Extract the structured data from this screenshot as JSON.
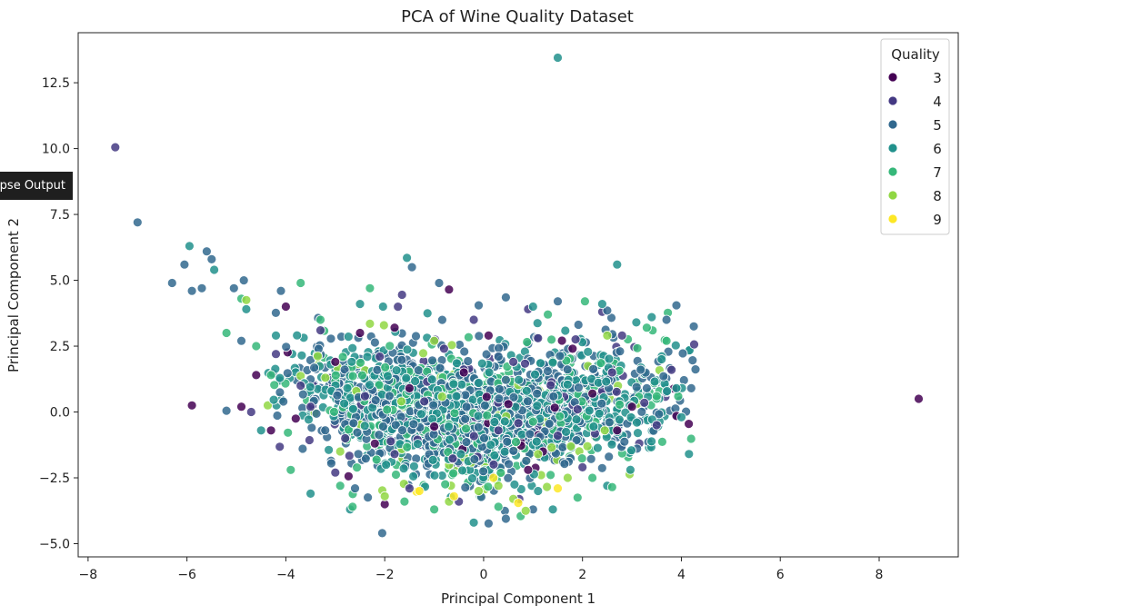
{
  "tooltip": {
    "label": "Collapse Output"
  },
  "chart_data": {
    "type": "scatter",
    "title": "PCA of Wine Quality Dataset",
    "xlabel": "Principal Component 1",
    "ylabel": "Principal Component 2",
    "xlim": [
      -8.2,
      9.6
    ],
    "ylim": [
      -5.5,
      14.4
    ],
    "xticks": [
      -8,
      -6,
      -4,
      -2,
      0,
      2,
      4,
      6,
      8
    ],
    "xtick_labels": [
      "−8",
      "−6",
      "−4",
      "−2",
      "0",
      "2",
      "4",
      "6",
      "8"
    ],
    "yticks": [
      -5.0,
      -2.5,
      0.0,
      2.5,
      5.0,
      7.5,
      10.0,
      12.5
    ],
    "ytick_labels": [
      "−5.0",
      "−2.5",
      "0.0",
      "2.5",
      "5.0",
      "7.5",
      "10.0",
      "12.5"
    ],
    "grid": false,
    "legend": {
      "title": "Quality",
      "placement": "top-right",
      "entries": [
        {
          "name": "3",
          "color": "#440154"
        },
        {
          "name": "4",
          "color": "#443983"
        },
        {
          "name": "5",
          "color": "#31688e"
        },
        {
          "name": "6",
          "color": "#21918c"
        },
        {
          "name": "7",
          "color": "#35b779"
        },
        {
          "name": "8",
          "color": "#90d743"
        },
        {
          "name": "9",
          "color": "#fde725"
        }
      ]
    },
    "series": [
      {
        "name": "3",
        "color": "#440154",
        "points": [
          [
            8.8,
            0.5
          ],
          [
            -5.9,
            0.25
          ],
          [
            -4.9,
            0.2
          ],
          [
            -4.6,
            1.4
          ],
          [
            -4.0,
            4.0
          ],
          [
            -0.7,
            4.65
          ],
          [
            0.1,
            2.9
          ],
          [
            4.15,
            -0.45
          ],
          [
            3.9,
            -0.15
          ],
          [
            -3.8,
            -0.25
          ],
          [
            -2.5,
            3.0
          ],
          [
            -2.0,
            -3.5
          ],
          [
            -1.5,
            0.9
          ],
          [
            -1.0,
            -0.55
          ],
          [
            0.5,
            0.3
          ],
          [
            1.2,
            -1.5
          ],
          [
            2.2,
            0.7
          ],
          [
            -3.0,
            1.9
          ],
          [
            -2.2,
            -1.2
          ],
          [
            -0.4,
            1.5
          ],
          [
            1.8,
            2.4
          ],
          [
            0.9,
            -2.2
          ],
          [
            2.7,
            -0.7
          ],
          [
            -4.3,
            -0.7
          ],
          [
            -1.8,
            3.2
          ],
          [
            3.0,
            0.2
          ]
        ]
      },
      {
        "name": "4",
        "color": "#443983",
        "points": [
          [
            -7.45,
            10.05
          ],
          [
            -1.65,
            4.45
          ],
          [
            3.25,
            0.35
          ],
          [
            2.4,
            3.8
          ],
          [
            -4.7,
            0.0
          ],
          [
            -3.7,
            1.0
          ],
          [
            -3.3,
            3.1
          ],
          [
            -2.8,
            -1.0
          ],
          [
            -2.1,
            2.1
          ],
          [
            -1.2,
            0.4
          ],
          [
            -0.2,
            3.5
          ],
          [
            0.6,
            1.9
          ],
          [
            1.5,
            -0.9
          ],
          [
            2.6,
            1.5
          ],
          [
            3.5,
            -0.5
          ],
          [
            -3.0,
            -2.3
          ],
          [
            -1.5,
            -2.9
          ],
          [
            0.3,
            -0.7
          ],
          [
            1.1,
            2.8
          ],
          [
            2.0,
            -2.1
          ],
          [
            -2.4,
            0.6
          ],
          [
            -0.8,
            2.4
          ],
          [
            3.8,
            1.6
          ],
          [
            -4.2,
            2.2
          ],
          [
            0.9,
            3.9
          ],
          [
            -0.5,
            -3.4
          ],
          [
            1.9,
            0.1
          ],
          [
            -3.5,
            0.2
          ],
          [
            2.8,
            2.9
          ],
          [
            -1.8,
            -1.6
          ]
        ]
      },
      {
        "name": "5",
        "color": "#31688e",
        "points": [
          [
            -7.0,
            7.2
          ],
          [
            -6.3,
            4.9
          ],
          [
            -6.05,
            5.6
          ],
          [
            -5.6,
            6.1
          ],
          [
            -5.5,
            5.8
          ],
          [
            -4.85,
            5.0
          ],
          [
            -4.1,
            4.6
          ],
          [
            -2.05,
            -4.6
          ],
          [
            -1.45,
            5.5
          ],
          [
            -0.9,
            4.9
          ],
          [
            -0.1,
            4.05
          ],
          [
            0.45,
            4.35
          ],
          [
            1.5,
            4.2
          ],
          [
            3.9,
            4.05
          ],
          [
            4.25,
            3.25
          ],
          [
            -5.2,
            0.05
          ],
          [
            -5.05,
            4.7
          ],
          [
            -4.9,
            2.7
          ],
          [
            -2.6,
            -2.9
          ],
          [
            0.45,
            -4.05
          ],
          [
            1.0,
            -3.7
          ],
          [
            3.3,
            0.9
          ],
          [
            4.2,
            0.9
          ],
          [
            -5.9,
            4.6
          ],
          [
            -5.7,
            4.7
          ],
          [
            2.5,
            3.85
          ],
          [
            3.7,
            3.5
          ]
        ]
      },
      {
        "name": "6",
        "color": "#21918c",
        "points": [
          [
            1.5,
            13.45
          ],
          [
            -5.95,
            6.3
          ],
          [
            -5.45,
            5.4
          ],
          [
            -1.55,
            5.85
          ],
          [
            2.7,
            5.6
          ],
          [
            -4.8,
            3.9
          ],
          [
            3.4,
            3.6
          ],
          [
            3.6,
            2.0
          ],
          [
            3.9,
            0.9
          ],
          [
            4.0,
            -0.2
          ],
          [
            -4.5,
            -0.7
          ],
          [
            -4.2,
            2.9
          ],
          [
            -3.5,
            -3.1
          ],
          [
            -2.5,
            4.1
          ],
          [
            1.0,
            4.0
          ],
          [
            2.4,
            4.1
          ],
          [
            3.1,
            -0.4
          ],
          [
            -2.7,
            -3.7
          ],
          [
            1.4,
            -3.7
          ],
          [
            2.5,
            -2.8
          ],
          [
            -0.2,
            -4.2
          ],
          [
            1.1,
            -3.0
          ]
        ]
      },
      {
        "name": "7",
        "color": "#35b779",
        "points": [
          [
            -3.7,
            4.9
          ],
          [
            -5.2,
            3.0
          ],
          [
            -4.9,
            4.3
          ],
          [
            -3.9,
            -2.2
          ],
          [
            -2.65,
            -3.6
          ],
          [
            -2.3,
            4.7
          ],
          [
            2.05,
            4.2
          ],
          [
            3.3,
            3.2
          ],
          [
            3.5,
            0.6
          ],
          [
            2.6,
            -2.85
          ],
          [
            1.9,
            -3.25
          ],
          [
            0.75,
            -3.95
          ],
          [
            -1.6,
            -3.4
          ],
          [
            -3.3,
            3.5
          ],
          [
            -4.3,
            1.4
          ],
          [
            -4.6,
            2.5
          ],
          [
            3.7,
            2.7
          ],
          [
            0.3,
            -3.6
          ],
          [
            -1.0,
            -3.7
          ],
          [
            2.2,
            -2.5
          ],
          [
            -2.9,
            -2.8
          ],
          [
            1.3,
            3.7
          ]
        ]
      },
      {
        "name": "8",
        "color": "#90d743",
        "points": [
          [
            -4.8,
            4.25
          ],
          [
            -2.3,
            3.35
          ],
          [
            0.85,
            -3.75
          ],
          [
            -0.7,
            -3.4
          ],
          [
            -0.1,
            -3.0
          ],
          [
            -2.0,
            -3.2
          ],
          [
            0.3,
            -2.8
          ],
          [
            1.7,
            -2.5
          ],
          [
            2.45,
            -0.7
          ],
          [
            2.5,
            2.9
          ],
          [
            -1.0,
            2.7
          ],
          [
            -3.2,
            1.3
          ],
          [
            0.6,
            -3.3
          ],
          [
            -2.9,
            -1.5
          ],
          [
            1.1,
            -1.6
          ],
          [
            2.1,
            -1.3
          ]
        ]
      },
      {
        "name": "9",
        "color": "#fde725",
        "points": [
          [
            0.7,
            -3.45
          ],
          [
            -0.6,
            -3.2
          ],
          [
            1.5,
            -2.9
          ],
          [
            -1.3,
            -3.0
          ],
          [
            0.2,
            -2.5
          ]
        ]
      }
    ],
    "note_dense_cluster": "dense"
  }
}
